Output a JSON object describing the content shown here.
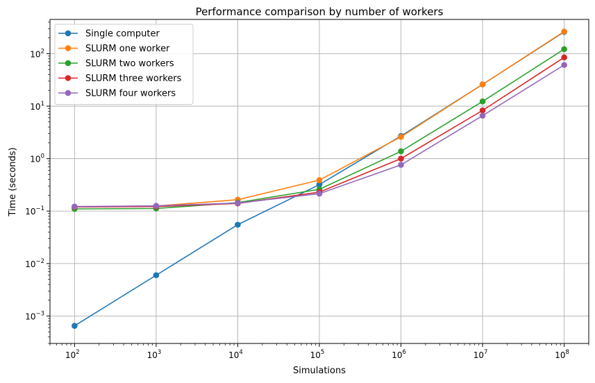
{
  "chart_data": {
    "type": "line",
    "title": "Performance comparison by number of workers",
    "xlabel": "Simulations",
    "ylabel": "Time (seconds)",
    "xscale": "log",
    "yscale": "log",
    "xlim": [
      50,
      200000000
    ],
    "ylim": [
      0.0003,
      450
    ],
    "grid": true,
    "legend_position": "top-left",
    "x": [
      100,
      1000,
      10000,
      100000,
      1000000,
      10000000,
      100000000
    ],
    "x_ticks": [
      {
        "value": 100,
        "base": "10",
        "exp": "2"
      },
      {
        "value": 1000,
        "base": "10",
        "exp": "3"
      },
      {
        "value": 10000,
        "base": "10",
        "exp": "4"
      },
      {
        "value": 100000,
        "base": "10",
        "exp": "5"
      },
      {
        "value": 1000000,
        "base": "10",
        "exp": "6"
      },
      {
        "value": 10000000,
        "base": "10",
        "exp": "7"
      },
      {
        "value": 100000000,
        "base": "10",
        "exp": "8"
      }
    ],
    "y_ticks": [
      {
        "value": 0.001,
        "base": "10",
        "exp": "−3"
      },
      {
        "value": 0.01,
        "base": "10",
        "exp": "−2"
      },
      {
        "value": 0.1,
        "base": "10",
        "exp": "−1"
      },
      {
        "value": 1,
        "base": "10",
        "exp": "0"
      },
      {
        "value": 10,
        "base": "10",
        "exp": "1"
      },
      {
        "value": 100,
        "base": "10",
        "exp": "2"
      }
    ],
    "series": [
      {
        "name": "Single computer",
        "color": "#1f77b4",
        "values": [
          0.00065,
          0.006,
          0.055,
          0.32,
          2.7,
          26,
          260
        ]
      },
      {
        "name": "SLURM one worker",
        "color": "#ff7f0e",
        "values": [
          0.12,
          0.125,
          0.165,
          0.39,
          2.6,
          26,
          265
        ]
      },
      {
        "name": "SLURM two workers",
        "color": "#2ca02c",
        "values": [
          0.11,
          0.112,
          0.145,
          0.26,
          1.38,
          12.3,
          122
        ]
      },
      {
        "name": "SLURM three workers",
        "color": "#d62728",
        "values": [
          0.12,
          0.122,
          0.14,
          0.23,
          1.0,
          8.3,
          85
        ]
      },
      {
        "name": "SLURM four workers",
        "color": "#9467bd",
        "values": [
          0.122,
          0.126,
          0.142,
          0.215,
          0.76,
          6.6,
          61
        ]
      }
    ]
  }
}
